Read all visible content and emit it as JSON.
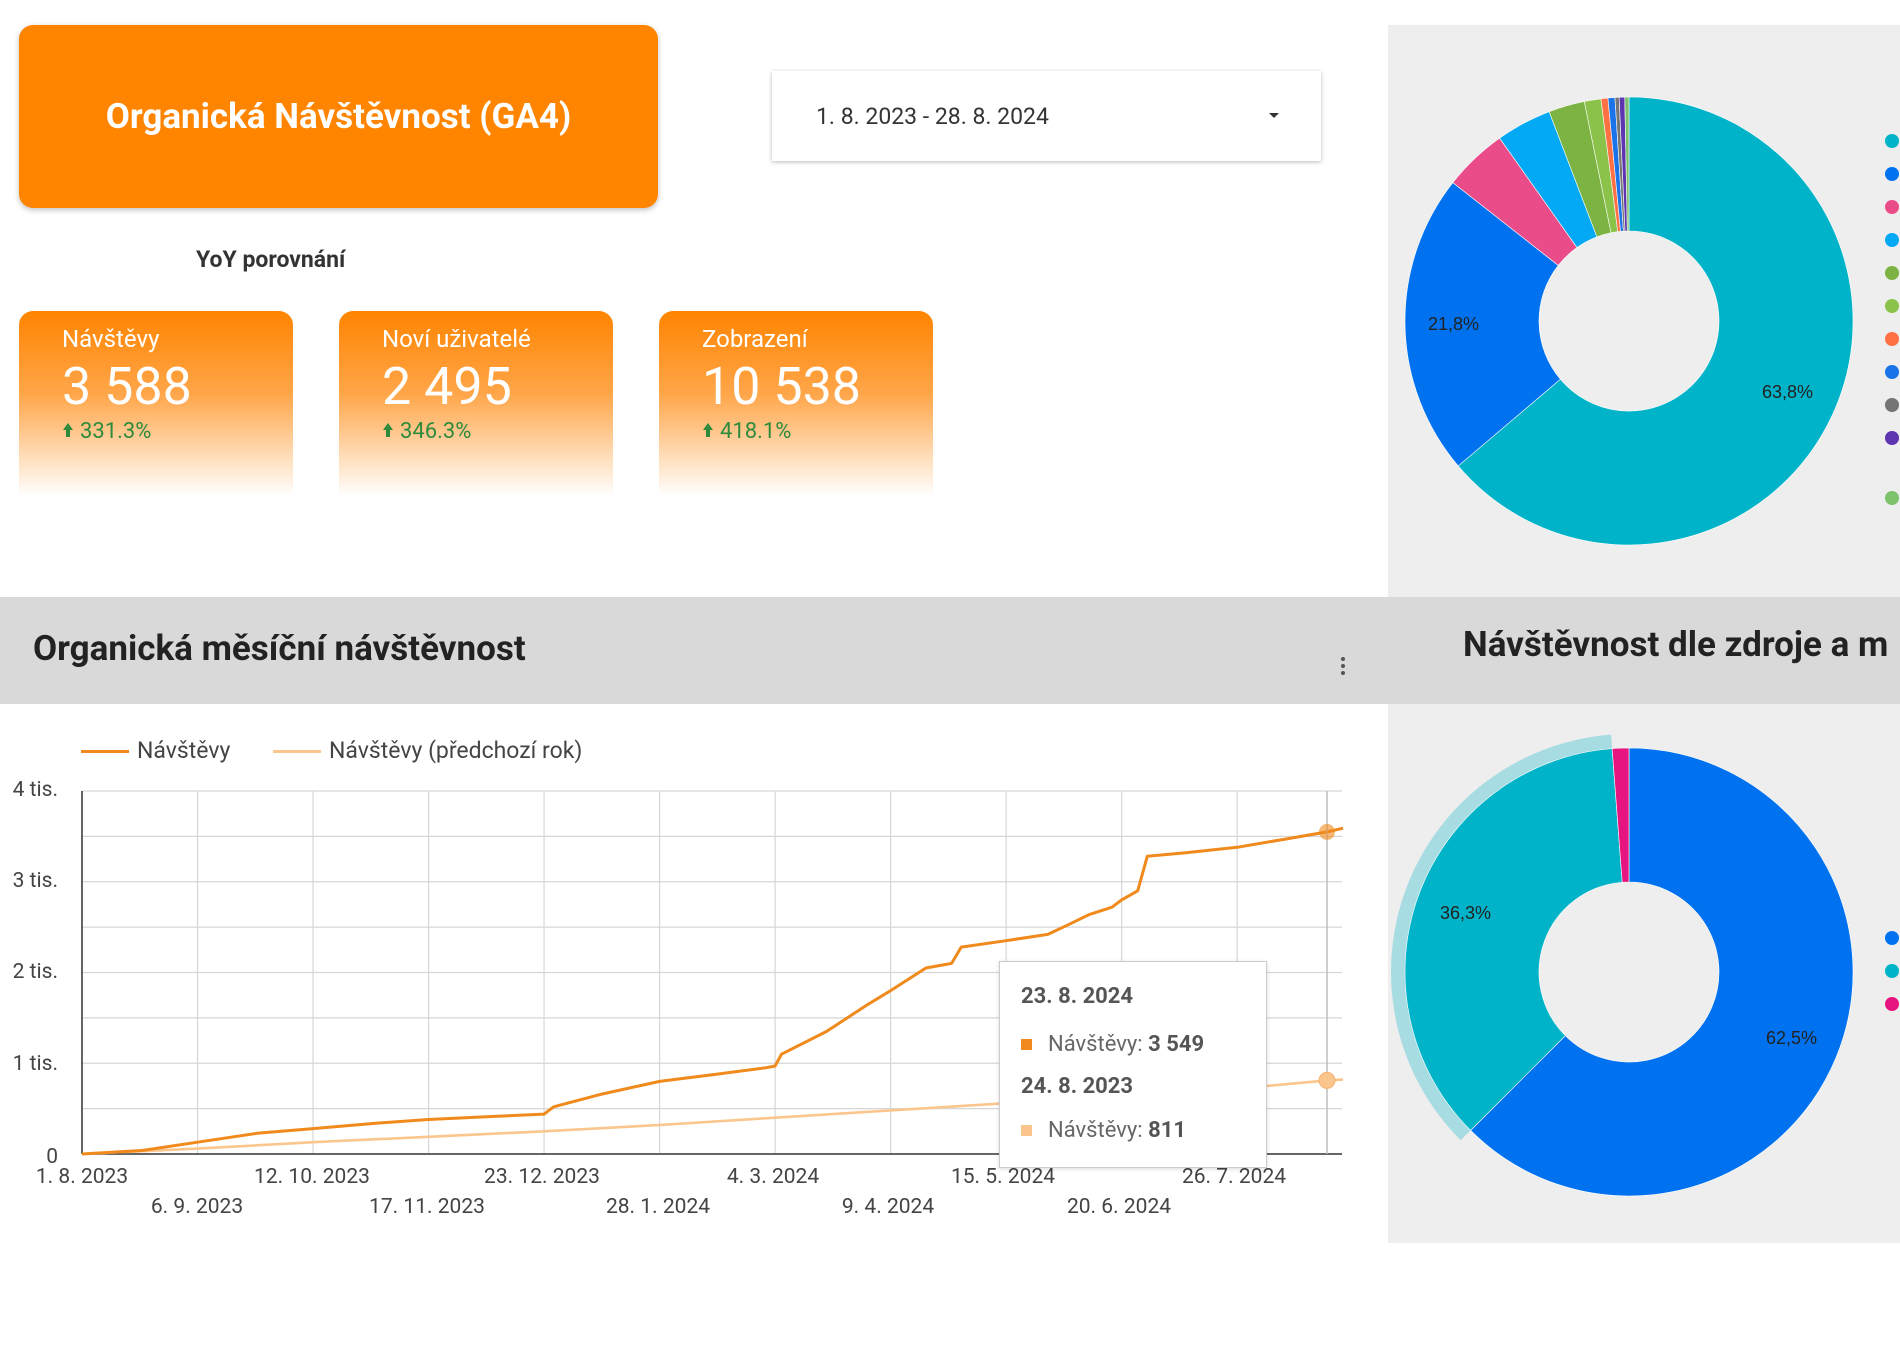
{
  "header": {
    "title": "Organická Návštěvnost (GA4)",
    "date_range": "1. 8. 2023 - 28. 8. 2024",
    "yoy_label": "YoY porovnání"
  },
  "kpis": [
    {
      "label": "Návštěvy",
      "value": "3 588",
      "change": "331.3%",
      "trend": "up"
    },
    {
      "label": "Noví uživatelé",
      "value": "2 495",
      "change": "346.3%",
      "trend": "up"
    },
    {
      "label": "Zobrazení",
      "value": "10 538",
      "change": "418.1%",
      "trend": "up"
    }
  ],
  "line_section": {
    "title": "Organická měsíční návštěvnost"
  },
  "pie_section": {
    "title": "Návštěvnost dle zdroje a m"
  },
  "tooltip": {
    "date_current": "23. 8. 2024",
    "current_label": "Návštěvy:",
    "current_value": "3 549",
    "date_previous": "24. 8. 2023",
    "previous_label": "Návštěvy:",
    "previous_value": "811"
  },
  "colors": {
    "accent": "#ff8400",
    "previous": "#fbc68d",
    "positive": "#2e8b3c"
  },
  "chart_data": [
    {
      "type": "line",
      "series": [
        {
          "name": "Návštěvy",
          "color": "#f08a1c",
          "x": [
            "2023-08-01",
            "2023-08-20",
            "2023-09-06",
            "2023-09-25",
            "2023-10-12",
            "2023-11-01",
            "2023-11-17",
            "2023-12-05",
            "2023-12-23",
            "2023-12-26",
            "2024-01-10",
            "2024-01-28",
            "2024-02-15",
            "2024-03-01",
            "2024-03-04",
            "2024-03-06",
            "2024-03-20",
            "2024-04-02",
            "2024-04-09",
            "2024-04-20",
            "2024-04-28",
            "2024-05-01",
            "2024-05-15",
            "2024-05-28",
            "2024-06-03",
            "2024-06-10",
            "2024-06-17",
            "2024-06-20",
            "2024-06-25",
            "2024-06-28",
            "2024-07-10",
            "2024-07-26",
            "2024-08-10",
            "2024-08-23",
            "2024-08-28"
          ],
          "values": [
            0,
            40,
            130,
            230,
            280,
            340,
            380,
            410,
            440,
            520,
            660,
            800,
            880,
            950,
            970,
            1100,
            1350,
            1650,
            1800,
            2050,
            2100,
            2280,
            2350,
            2420,
            2520,
            2640,
            2720,
            2800,
            2900,
            3280,
            3320,
            3380,
            3470,
            3549,
            3590
          ]
        },
        {
          "name": "Návštěvy (předchozí rok)",
          "color": "#fbc68d",
          "x": [
            "2023-08-01",
            "2023-09-06",
            "2023-10-12",
            "2023-11-17",
            "2023-12-23",
            "2024-01-28",
            "2024-03-04",
            "2024-04-09",
            "2024-05-15",
            "2024-06-20",
            "2024-07-26",
            "2024-08-23",
            "2024-08-28"
          ],
          "values": [
            0,
            60,
            130,
            190,
            250,
            320,
            400,
            480,
            560,
            630,
            720,
            811,
            820
          ]
        }
      ],
      "x_ticks": [
        "1. 8. 2023",
        "6. 9. 2023",
        "12. 10. 2023",
        "17. 11. 2023",
        "23. 12. 2023",
        "28. 1. 2024",
        "4. 3. 2024",
        "9. 4. 2024",
        "15. 5. 2024",
        "20. 6. 2024",
        "26. 7. 2024"
      ],
      "y_ticks": [
        "0",
        "1 tis.",
        "2 tis.",
        "3 tis.",
        "4 tis."
      ],
      "ylim": [
        0,
        4000
      ],
      "legend": "top-left",
      "grid": true
    },
    {
      "type": "pie",
      "donut": true,
      "slices": [
        {
          "value": 63.8,
          "color": "#00b3c8",
          "label": "63,8%"
        },
        {
          "value": 21.8,
          "color": "#0072f0",
          "label": "21,8%"
        },
        {
          "value": 4.6,
          "color": "#ea4c89"
        },
        {
          "value": 4.0,
          "color": "#03a9f4"
        },
        {
          "value": 2.6,
          "color": "#7cb342"
        },
        {
          "value": 1.2,
          "color": "#8bc34a"
        },
        {
          "value": 0.5,
          "color": "#ff7043"
        },
        {
          "value": 0.5,
          "color": "#1a73e8"
        },
        {
          "value": 0.3,
          "color": "#757575"
        },
        {
          "value": 0.4,
          "color": "#5e35b1"
        },
        {
          "value": 0.3,
          "color": "#7cc26d"
        }
      ]
    },
    {
      "type": "pie",
      "donut": true,
      "slices": [
        {
          "value": 62.5,
          "color": "#0072f0",
          "label": "62,5%"
        },
        {
          "value": 36.3,
          "color": "#00b3c8",
          "label": "36,3%",
          "highlighted": true
        },
        {
          "value": 1.2,
          "color": "#e6157f"
        }
      ]
    }
  ]
}
